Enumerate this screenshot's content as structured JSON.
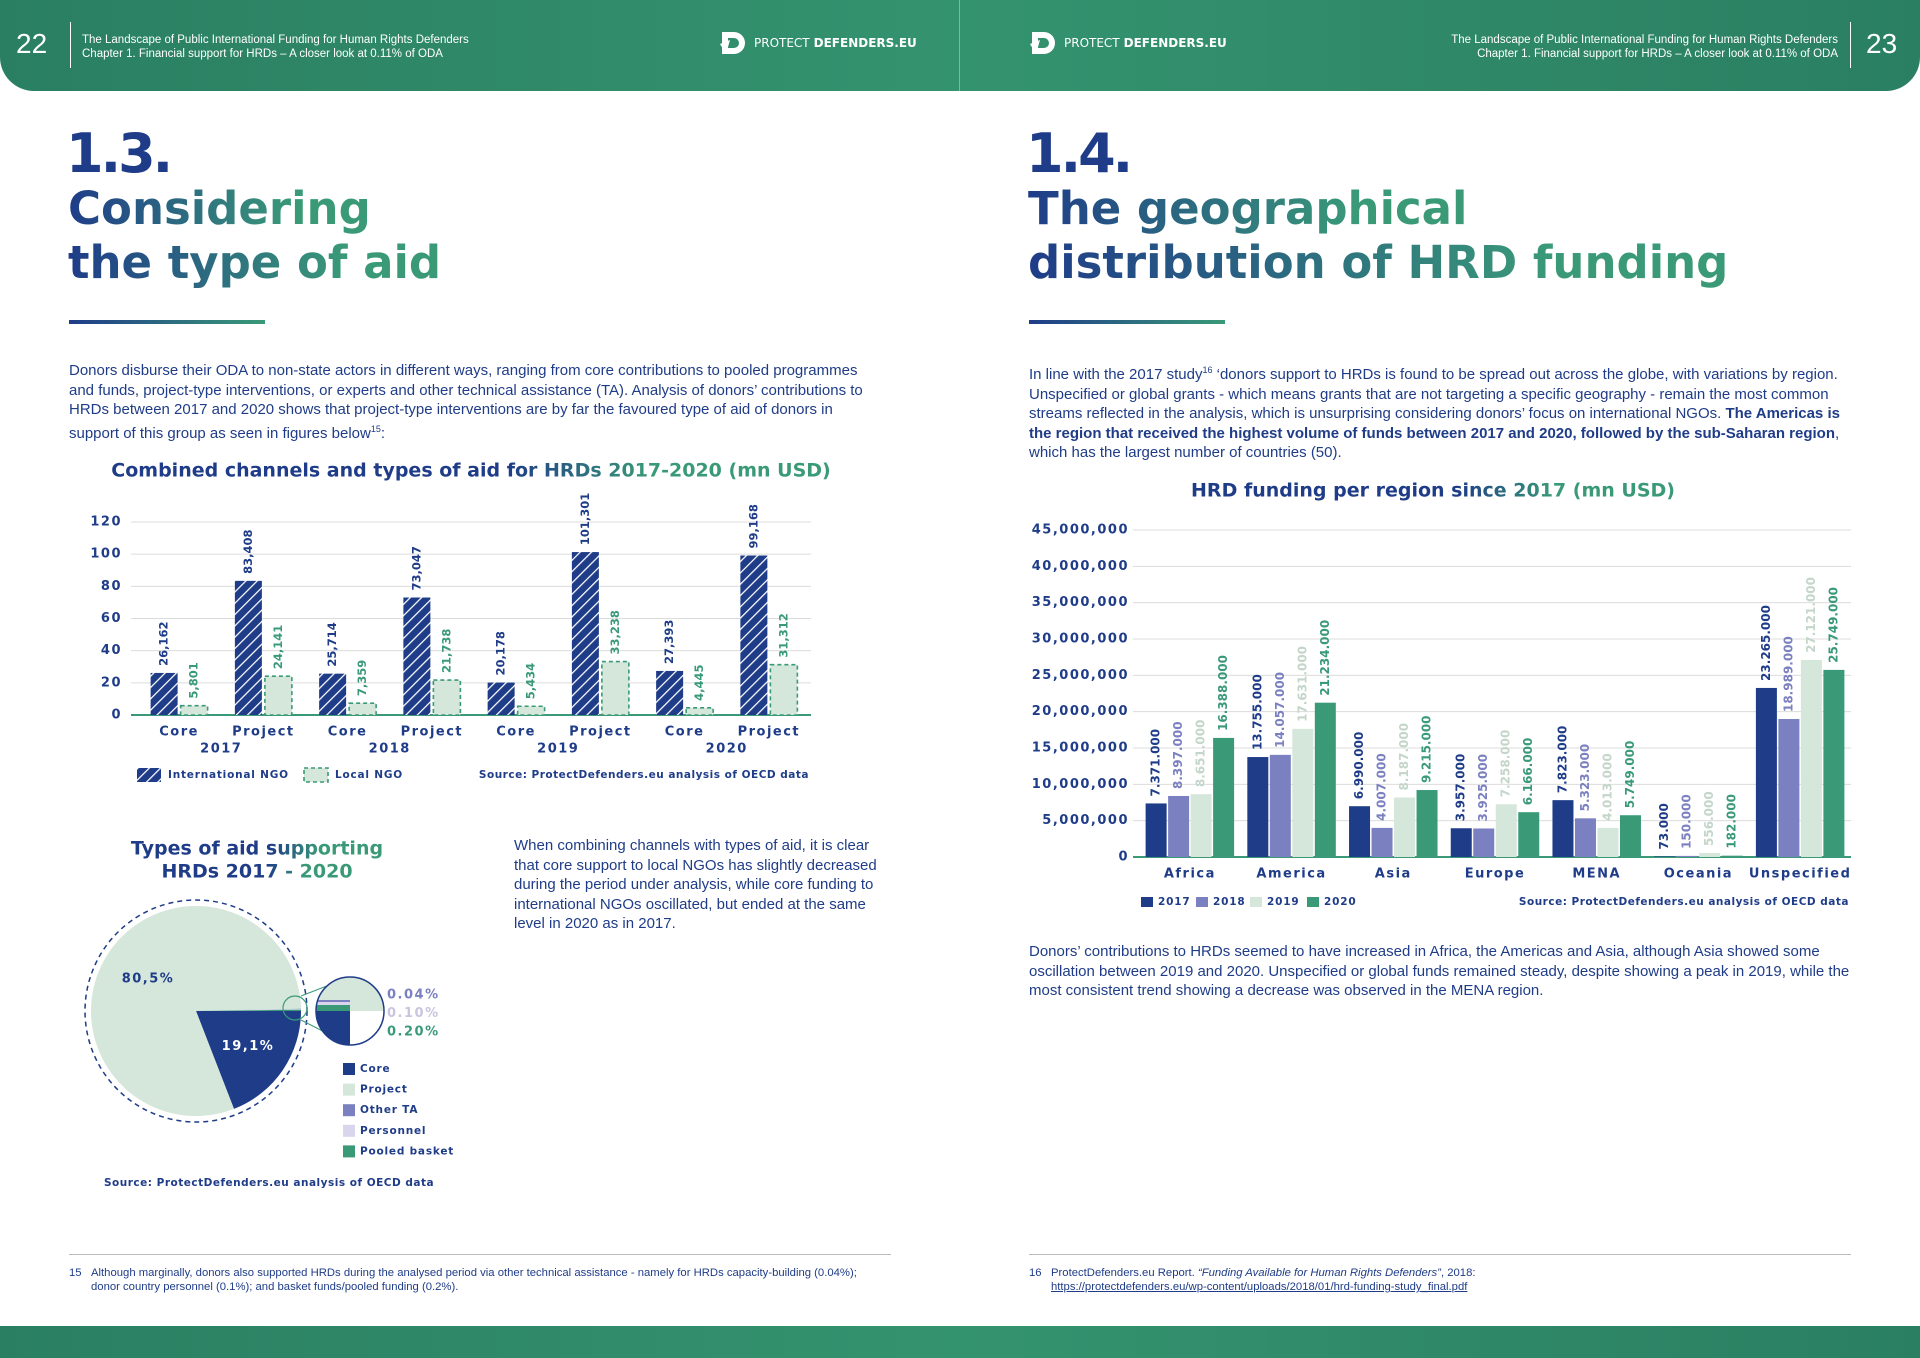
{
  "header": {
    "report_title": "The Landscape of Public International Funding for Human Rights Defenders",
    "chapter": "Chapter 1. Financial support for HRDs – A closer look at 0.11% of ODA",
    "logo_prefix": "PROTECT",
    "logo_suffix": "DEFENDERS.EU"
  },
  "left_page": {
    "page_number": 22,
    "section_number": "1.3.",
    "section_title": [
      "Considering",
      "the type of aid"
    ],
    "intro": {
      "text": "Donors disburse their ODA to non-state actors in different ways, ranging from core contributions to pooled programmes and funds, project-type interventions, or experts and other technical assistance (TA). Analysis of donors’ contributions to HRDs between 2017 and 2020 shows that project-type interventions are by far the favoured type of aid of donors in support of this group as seen in figures below",
      "footnote_ref": "15",
      "end": ":"
    },
    "pie_note": "When combining channels with types of aid, it is clear that core support to local NGOs has slightly decreased during the period under analysis, while core funding to international NGOs oscillated, but ended at the same level in 2020 as in 2017.",
    "footnote": {
      "number": "15",
      "text": "Although marginally, donors also supported HRDs during the analysed period via other technical assistance - namely for HRDs capacity-building (0.04%); donor country personnel (0.1%); and basket funds/pooled funding (0.2%)."
    }
  },
  "right_page": {
    "page_number": 23,
    "section_number": "1.4.",
    "section_title": [
      "The geographical",
      "distribution of HRD funding"
    ],
    "intro": {
      "start": "In line with the 2017 study",
      "footnote_ref": "16",
      "text": " ‘donors support to HRDs is found to be spread out across the globe, with variations by region. Unspecified or global grants - which means grants that are not targeting a specific geography - remain the most common streams reflected in the analysis, which is unsurprising considering donors’ focus on international NGOs. ",
      "bold": "The Americas is the region that received the highest volume of funds between 2017 and 2020, followed by the sub-Saharan region",
      "end": ", which has the largest number of countries (50)."
    },
    "after_chart": "Donors’ contributions to HRDs seemed to have increased in Africa, the Americas and Asia, although Asia showed some oscillation between 2019 and 2020. Unspecified or global funds remained steady, despite showing a peak in 2019, while the most consistent trend showing a decrease was observed in the MENA region.",
    "footnote": {
      "number": "16",
      "text": "ProtectDefenders.eu Report. ",
      "italic": "“Funding Available for Human Rights Defenders”",
      "after": ", 2018:",
      "url": "https://protectdefenders.eu/wp-content/uploads/2018/01/hrd-funding-study_final.pdf"
    }
  },
  "chart_data": [
    {
      "type": "bar",
      "title": "Combined channels and types of aid for HRDs 2017-2020 (mn USD)",
      "categories": [
        "Core",
        "Project",
        "Core",
        "Project",
        "Core",
        "Project",
        "Core",
        "Project"
      ],
      "groups": [
        "2017",
        "2018",
        "2019",
        "2020"
      ],
      "series": [
        {
          "name": "International NGO",
          "color": "#1f3c88",
          "label_color": "#1f3c88",
          "style": "hatched",
          "values": [
            26.162,
            83.408,
            25.714,
            73.047,
            20.178,
            101.301,
            27.393,
            99.168
          ],
          "value_labels": [
            "26,162",
            "83,408",
            "25,714",
            "73,047",
            "20,178",
            "101,301",
            "27,393",
            "99,168"
          ]
        },
        {
          "name": "Local NGO",
          "color": "#d5e6da",
          "label_color": "#3a9a78",
          "style": "dashed",
          "values": [
            5.801,
            24.141,
            7.359,
            21.738,
            5.434,
            33.238,
            4.445,
            31.312
          ],
          "value_labels": [
            "5,801",
            "24,141",
            "7,359",
            "21,738",
            "5,434",
            "33,238",
            "4,445",
            "31,312"
          ]
        }
      ],
      "ylim": [
        0,
        120
      ],
      "yticks": [
        0,
        20,
        40,
        60,
        80,
        100,
        120
      ],
      "grid": true,
      "source": "Source: ProtectDefenders.eu analysis of OECD data"
    },
    {
      "type": "pie",
      "title": [
        "Types of aid supporting",
        "HRDs 2017 - 2020"
      ],
      "categories": [
        "Core",
        "Project",
        "Other TA",
        "Personnel",
        "Pooled basket"
      ],
      "values": [
        19.1,
        80.5,
        0.04,
        0.1,
        0.2
      ],
      "value_labels": [
        "19,1%",
        "80,5%",
        "0.04%",
        "0.10%",
        "0.20%"
      ],
      "colors": [
        "#1f3c88",
        "#d5e6da",
        "#7b80c0",
        "#d9d5ec",
        "#3a9a78"
      ],
      "label_colors": [
        "#ffffff",
        "#1f3c88",
        "#7b80c0",
        "#c9c5e0",
        "#3a9a78"
      ],
      "source": "Source: ProtectDefenders.eu analysis of OECD data"
    },
    {
      "type": "bar",
      "title": "HRD funding per region since 2017 (mn USD)",
      "categories": [
        "Africa",
        "America",
        "Asia",
        "Europe",
        "MENA",
        "Oceania",
        "Unspecified"
      ],
      "series": [
        {
          "name": "2017",
          "color": "#1f3c88",
          "label_color": "#1f3c88",
          "values": [
            7371000,
            13755000,
            6990000,
            3957000,
            7823000,
            73000,
            23265000
          ],
          "value_labels": [
            "7.371.000",
            "13.755.000",
            "6.990.000",
            "3.957.000",
            "7.823.000",
            "73.000",
            "23.265.000"
          ]
        },
        {
          "name": "2018",
          "color": "#7b80c0",
          "label_color": "#7b80c0",
          "values": [
            8397000,
            14057000,
            4007000,
            3925000,
            5323000,
            150000,
            18989000
          ],
          "value_labels": [
            "8.397.000",
            "14.057.000",
            "4.007.000",
            "3.925.000",
            "5.323.000",
            "150.000",
            "18.989.000"
          ]
        },
        {
          "name": "2019",
          "color": "#d5e6da",
          "label_color": "#c3d6c9",
          "values": [
            8651000,
            17631000,
            8187000,
            7258000,
            4013000,
            556000,
            27121000
          ],
          "value_labels": [
            "8.651.000",
            "17.631.000",
            "8.187.000",
            "7.258.000",
            "4.013.000",
            "556.000",
            "27.121.000"
          ]
        },
        {
          "name": "2020",
          "color": "#3a9a78",
          "label_color": "#3a9a78",
          "values": [
            16388000,
            21234000,
            9215000,
            6166000,
            5749000,
            182000,
            25749000
          ],
          "value_labels": [
            "16.388.000",
            "21.234.000",
            "9.215.000",
            "6.166.000",
            "5.749.000",
            "182.000",
            "25.749.000"
          ]
        }
      ],
      "ylim": [
        0,
        45000000
      ],
      "yticks": [
        0,
        {
          "value": 5000000,
          "label": "5,000,000"
        },
        {
          "value": 10000000,
          "label": "10,000,000"
        },
        {
          "value": 15000000,
          "label": "15,000,000"
        },
        {
          "value": 20000000,
          "label": "20,000,000"
        },
        {
          "value": 25000000,
          "label": "25,000,000"
        },
        {
          "value": 30000000,
          "label": "30,000,000"
        },
        {
          "value": 35000000,
          "label": "35,000,000"
        },
        {
          "value": 40000000,
          "label": "40,000,000"
        },
        {
          "value": 45000000,
          "label": "45,000,000"
        }
      ],
      "grid": true,
      "source": "Source: ProtectDefenders.eu analysis of OECD data"
    }
  ]
}
